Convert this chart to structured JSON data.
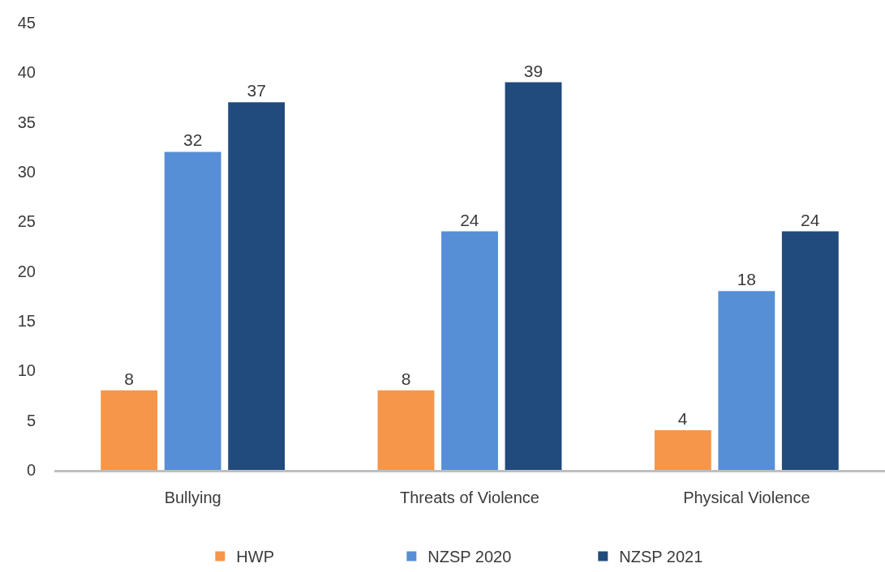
{
  "chart_data": {
    "type": "bar",
    "categories": [
      "Bullying",
      "Threats of Violence",
      "Physical Violence"
    ],
    "series": [
      {
        "name": "HWP",
        "color": "#f5964a",
        "values": [
          8,
          8,
          4
        ]
      },
      {
        "name": "NZSP 2020",
        "color": "#578fd6",
        "values": [
          32,
          24,
          18
        ]
      },
      {
        "name": "NZSP 2021",
        "color": "#214a7d",
        "values": [
          37,
          39,
          24
        ]
      }
    ],
    "ylim": [
      0,
      45
    ],
    "yticks": [
      0,
      5,
      10,
      15,
      20,
      25,
      30,
      35,
      40,
      45
    ],
    "data_labels": true,
    "grid": false,
    "legend": "bottom"
  }
}
